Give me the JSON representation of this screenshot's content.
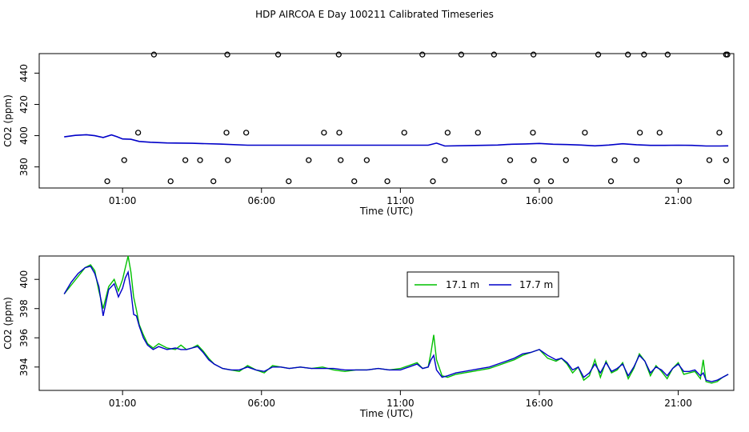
{
  "title": "HDP AIRCOA E  Day 100211  Calibrated Timeseries",
  "chart_data": [
    {
      "type": "scatter",
      "xlabel": "Time (UTC)",
      "ylabel": "CO2 (ppm)",
      "xlim": [
        22.0,
        47.0
      ],
      "ylim": [
        366.5,
        452.5
      ],
      "x_ticks": [
        25,
        30,
        35,
        40,
        45
      ],
      "x_tick_labels": [
        "01:00",
        "06:00",
        "11:00",
        "16:00",
        "21:00"
      ],
      "y_ticks": [
        380,
        400,
        420,
        440
      ],
      "y_tick_labels": [
        "380",
        "400",
        "420",
        "440"
      ],
      "grid": false,
      "line_segments": [
        [
          [
            22.9,
            399.2
          ],
          [
            23.3,
            400.2
          ],
          [
            23.7,
            400.6
          ],
          [
            24.0,
            400.0
          ],
          [
            24.3,
            398.8
          ],
          [
            24.6,
            400.5
          ],
          [
            24.8,
            399.3
          ],
          [
            25.0,
            397.9
          ],
          [
            25.3,
            397.7
          ],
          [
            25.6,
            396.3
          ],
          [
            26.0,
            395.8
          ],
          [
            26.6,
            395.3
          ],
          [
            27.5,
            395.1
          ],
          [
            28.5,
            394.6
          ],
          [
            29.5,
            393.9
          ],
          [
            30.5,
            393.9
          ],
          [
            31.5,
            393.9
          ],
          [
            32.5,
            393.9
          ],
          [
            33.5,
            393.9
          ],
          [
            34.5,
            393.9
          ],
          [
            35.5,
            393.9
          ],
          [
            36.0,
            393.9
          ],
          [
            36.3,
            395.2
          ],
          [
            36.6,
            393.4
          ],
          [
            37.5,
            393.7
          ],
          [
            38.5,
            394.0
          ],
          [
            39.0,
            394.5
          ],
          [
            39.5,
            394.7
          ],
          [
            40.0,
            395.0
          ],
          [
            40.5,
            394.5
          ],
          [
            41.0,
            394.3
          ],
          [
            41.5,
            394.0
          ],
          [
            42.0,
            393.5
          ],
          [
            42.5,
            394.0
          ],
          [
            43.0,
            394.8
          ],
          [
            43.5,
            394.2
          ],
          [
            44.0,
            393.8
          ],
          [
            44.5,
            393.8
          ],
          [
            45.0,
            393.9
          ],
          [
            45.5,
            393.8
          ],
          [
            46.0,
            393.4
          ],
          [
            46.5,
            393.4
          ],
          [
            46.8,
            393.5
          ]
        ]
      ],
      "points_x": [
        24.45,
        25.06,
        25.56,
        26.13,
        26.73,
        27.26,
        27.79,
        28.27,
        28.74,
        28.77,
        28.79,
        29.45,
        30.6,
        30.98,
        31.7,
        32.25,
        32.78,
        32.8,
        32.85,
        33.34,
        33.79,
        34.53,
        35.14,
        35.79,
        36.17,
        36.6,
        36.7,
        37.19,
        37.79,
        38.37,
        38.73,
        38.95,
        39.77,
        39.79,
        39.8,
        39.91,
        40.42,
        40.96,
        41.64,
        42.12,
        42.58,
        42.71,
        43.19,
        43.5,
        43.62,
        43.77,
        44.33,
        44.62,
        45.03,
        46.12,
        46.48,
        46.72,
        46.72,
        46.75,
        46.77
      ],
      "points_y": [
        370.8,
        384.3,
        401.9,
        451.9,
        370.8,
        384.3,
        384.3,
        370.8,
        401.9,
        451.9,
        384.3,
        401.9,
        451.9,
        370.8,
        384.3,
        401.9,
        451.9,
        401.9,
        384.3,
        370.8,
        384.3,
        370.8,
        401.9,
        451.9,
        370.8,
        384.3,
        401.9,
        451.9,
        401.9,
        451.9,
        370.8,
        384.3,
        401.9,
        451.9,
        384.3,
        370.8,
        370.8,
        384.3,
        401.9,
        451.9,
        370.8,
        384.3,
        451.9,
        384.3,
        401.9,
        451.9,
        401.9,
        451.9,
        370.8,
        384.3,
        401.9,
        451.9,
        384.3,
        370.8,
        451.9
      ]
    },
    {
      "type": "line",
      "xlabel": "Time (UTC)",
      "ylabel": "CO2 (ppm)",
      "xlim": [
        22.0,
        47.0
      ],
      "ylim": [
        392.4,
        401.6
      ],
      "x_ticks": [
        25,
        30,
        35,
        40,
        45
      ],
      "x_tick_labels": [
        "01:00",
        "06:00",
        "11:00",
        "16:00",
        "21:00"
      ],
      "y_ticks": [
        394,
        396,
        398,
        400
      ],
      "y_tick_labels": [
        "394",
        "396",
        "398",
        "400"
      ],
      "grid": false,
      "legend_position": "top-right",
      "series": [
        {
          "name": "17.1 m",
          "color": "#00c000",
          "x": [
            22.9,
            23.15,
            23.4,
            23.65,
            23.85,
            24.0,
            24.15,
            24.3,
            24.5,
            24.7,
            24.85,
            25.0,
            25.1,
            25.2,
            25.3,
            25.4,
            25.5,
            25.6,
            25.75,
            25.9,
            26.1,
            26.3,
            26.6,
            26.9,
            27.1,
            27.3,
            27.5,
            27.7,
            27.9,
            28.1,
            28.3,
            28.6,
            28.9,
            29.2,
            29.5,
            29.8,
            30.1,
            30.4,
            30.7,
            31.0,
            31.4,
            31.8,
            32.2,
            32.6,
            33.0,
            33.4,
            33.8,
            34.2,
            34.6,
            35.0,
            35.3,
            35.6,
            35.8,
            36.0,
            36.1,
            36.2,
            36.3,
            36.5,
            36.7,
            37.0,
            37.3,
            37.6,
            37.9,
            38.2,
            38.5,
            38.8,
            39.1,
            39.4,
            39.7,
            40.0,
            40.3,
            40.6,
            40.8,
            41.0,
            41.2,
            41.4,
            41.6,
            41.8,
            42.0,
            42.2,
            42.4,
            42.6,
            42.8,
            43.0,
            43.2,
            43.4,
            43.6,
            43.8,
            44.0,
            44.2,
            44.4,
            44.6,
            44.8,
            45.0,
            45.2,
            45.4,
            45.6,
            45.8,
            45.9,
            46.0,
            46.2,
            46.4,
            46.6,
            46.8
          ],
          "y": [
            399.0,
            399.6,
            400.2,
            400.8,
            401.0,
            400.6,
            399.2,
            398.0,
            399.5,
            400.0,
            399.2,
            400.0,
            400.8,
            401.6,
            400.5,
            398.8,
            397.9,
            396.9,
            396.2,
            395.6,
            395.3,
            395.6,
            395.3,
            395.2,
            395.5,
            395.2,
            395.3,
            395.5,
            395.1,
            394.6,
            394.2,
            393.9,
            393.8,
            393.7,
            394.1,
            393.8,
            393.6,
            394.1,
            394.0,
            393.9,
            394.0,
            393.9,
            394.0,
            393.8,
            393.7,
            393.8,
            393.8,
            393.9,
            393.8,
            393.9,
            394.1,
            394.3,
            393.9,
            394.0,
            395.0,
            396.2,
            394.5,
            393.4,
            393.3,
            393.5,
            393.6,
            393.7,
            393.8,
            393.9,
            394.1,
            394.3,
            394.5,
            394.8,
            395.0,
            395.2,
            394.6,
            394.4,
            394.6,
            394.2,
            393.6,
            394.0,
            393.1,
            393.4,
            394.5,
            393.3,
            394.4,
            393.6,
            393.8,
            394.3,
            393.2,
            393.9,
            394.9,
            394.4,
            393.4,
            394.1,
            393.7,
            393.2,
            393.9,
            394.3,
            393.5,
            393.6,
            393.7,
            393.2,
            394.5,
            393.0,
            392.9,
            393.0,
            393.3,
            393.5
          ]
        },
        {
          "name": "17.7 m",
          "color": "#0000c8",
          "x": [
            22.9,
            23.15,
            23.4,
            23.65,
            23.85,
            24.0,
            24.15,
            24.3,
            24.5,
            24.7,
            24.85,
            25.0,
            25.1,
            25.2,
            25.3,
            25.4,
            25.5,
            25.6,
            25.75,
            25.9,
            26.1,
            26.3,
            26.6,
            26.9,
            27.1,
            27.3,
            27.5,
            27.7,
            27.9,
            28.1,
            28.3,
            28.6,
            28.9,
            29.2,
            29.5,
            29.8,
            30.1,
            30.4,
            30.7,
            31.0,
            31.4,
            31.8,
            32.2,
            32.6,
            33.0,
            33.4,
            33.8,
            34.2,
            34.6,
            35.0,
            35.3,
            35.6,
            35.8,
            36.0,
            36.1,
            36.2,
            36.3,
            36.5,
            36.7,
            37.0,
            37.3,
            37.6,
            37.9,
            38.2,
            38.5,
            38.8,
            39.1,
            39.4,
            39.7,
            40.0,
            40.3,
            40.6,
            40.8,
            41.0,
            41.2,
            41.4,
            41.6,
            41.8,
            42.0,
            42.2,
            42.4,
            42.6,
            42.8,
            43.0,
            43.2,
            43.4,
            43.6,
            43.8,
            44.0,
            44.2,
            44.4,
            44.6,
            44.8,
            45.0,
            45.2,
            45.4,
            45.6,
            45.8,
            45.9,
            46.0,
            46.2,
            46.4,
            46.6,
            46.8
          ],
          "y": [
            399.0,
            399.8,
            400.4,
            400.8,
            400.9,
            400.4,
            399.5,
            397.5,
            399.3,
            399.7,
            398.8,
            399.4,
            400.1,
            400.5,
            399.2,
            397.6,
            397.5,
            396.8,
            396.0,
            395.5,
            395.2,
            395.4,
            395.2,
            395.3,
            395.2,
            395.2,
            395.3,
            395.4,
            395.0,
            394.5,
            394.2,
            393.9,
            393.8,
            393.8,
            394.0,
            393.8,
            393.7,
            394.0,
            394.0,
            393.9,
            394.0,
            393.9,
            393.9,
            393.9,
            393.8,
            393.8,
            393.8,
            393.9,
            393.8,
            393.8,
            394.0,
            394.2,
            393.9,
            394.0,
            394.5,
            394.8,
            393.8,
            393.3,
            393.4,
            393.6,
            393.7,
            393.8,
            393.9,
            394.0,
            394.2,
            394.4,
            394.6,
            394.9,
            395.0,
            395.2,
            394.8,
            394.5,
            394.6,
            394.3,
            393.8,
            394.0,
            393.3,
            393.6,
            394.2,
            393.6,
            394.3,
            393.7,
            393.9,
            394.2,
            393.4,
            394.0,
            394.8,
            394.4,
            393.6,
            394.0,
            393.8,
            393.4,
            393.9,
            394.2,
            393.7,
            393.7,
            393.8,
            393.4,
            393.6,
            393.1,
            393.0,
            393.1,
            393.3,
            393.5
          ]
        }
      ]
    }
  ]
}
